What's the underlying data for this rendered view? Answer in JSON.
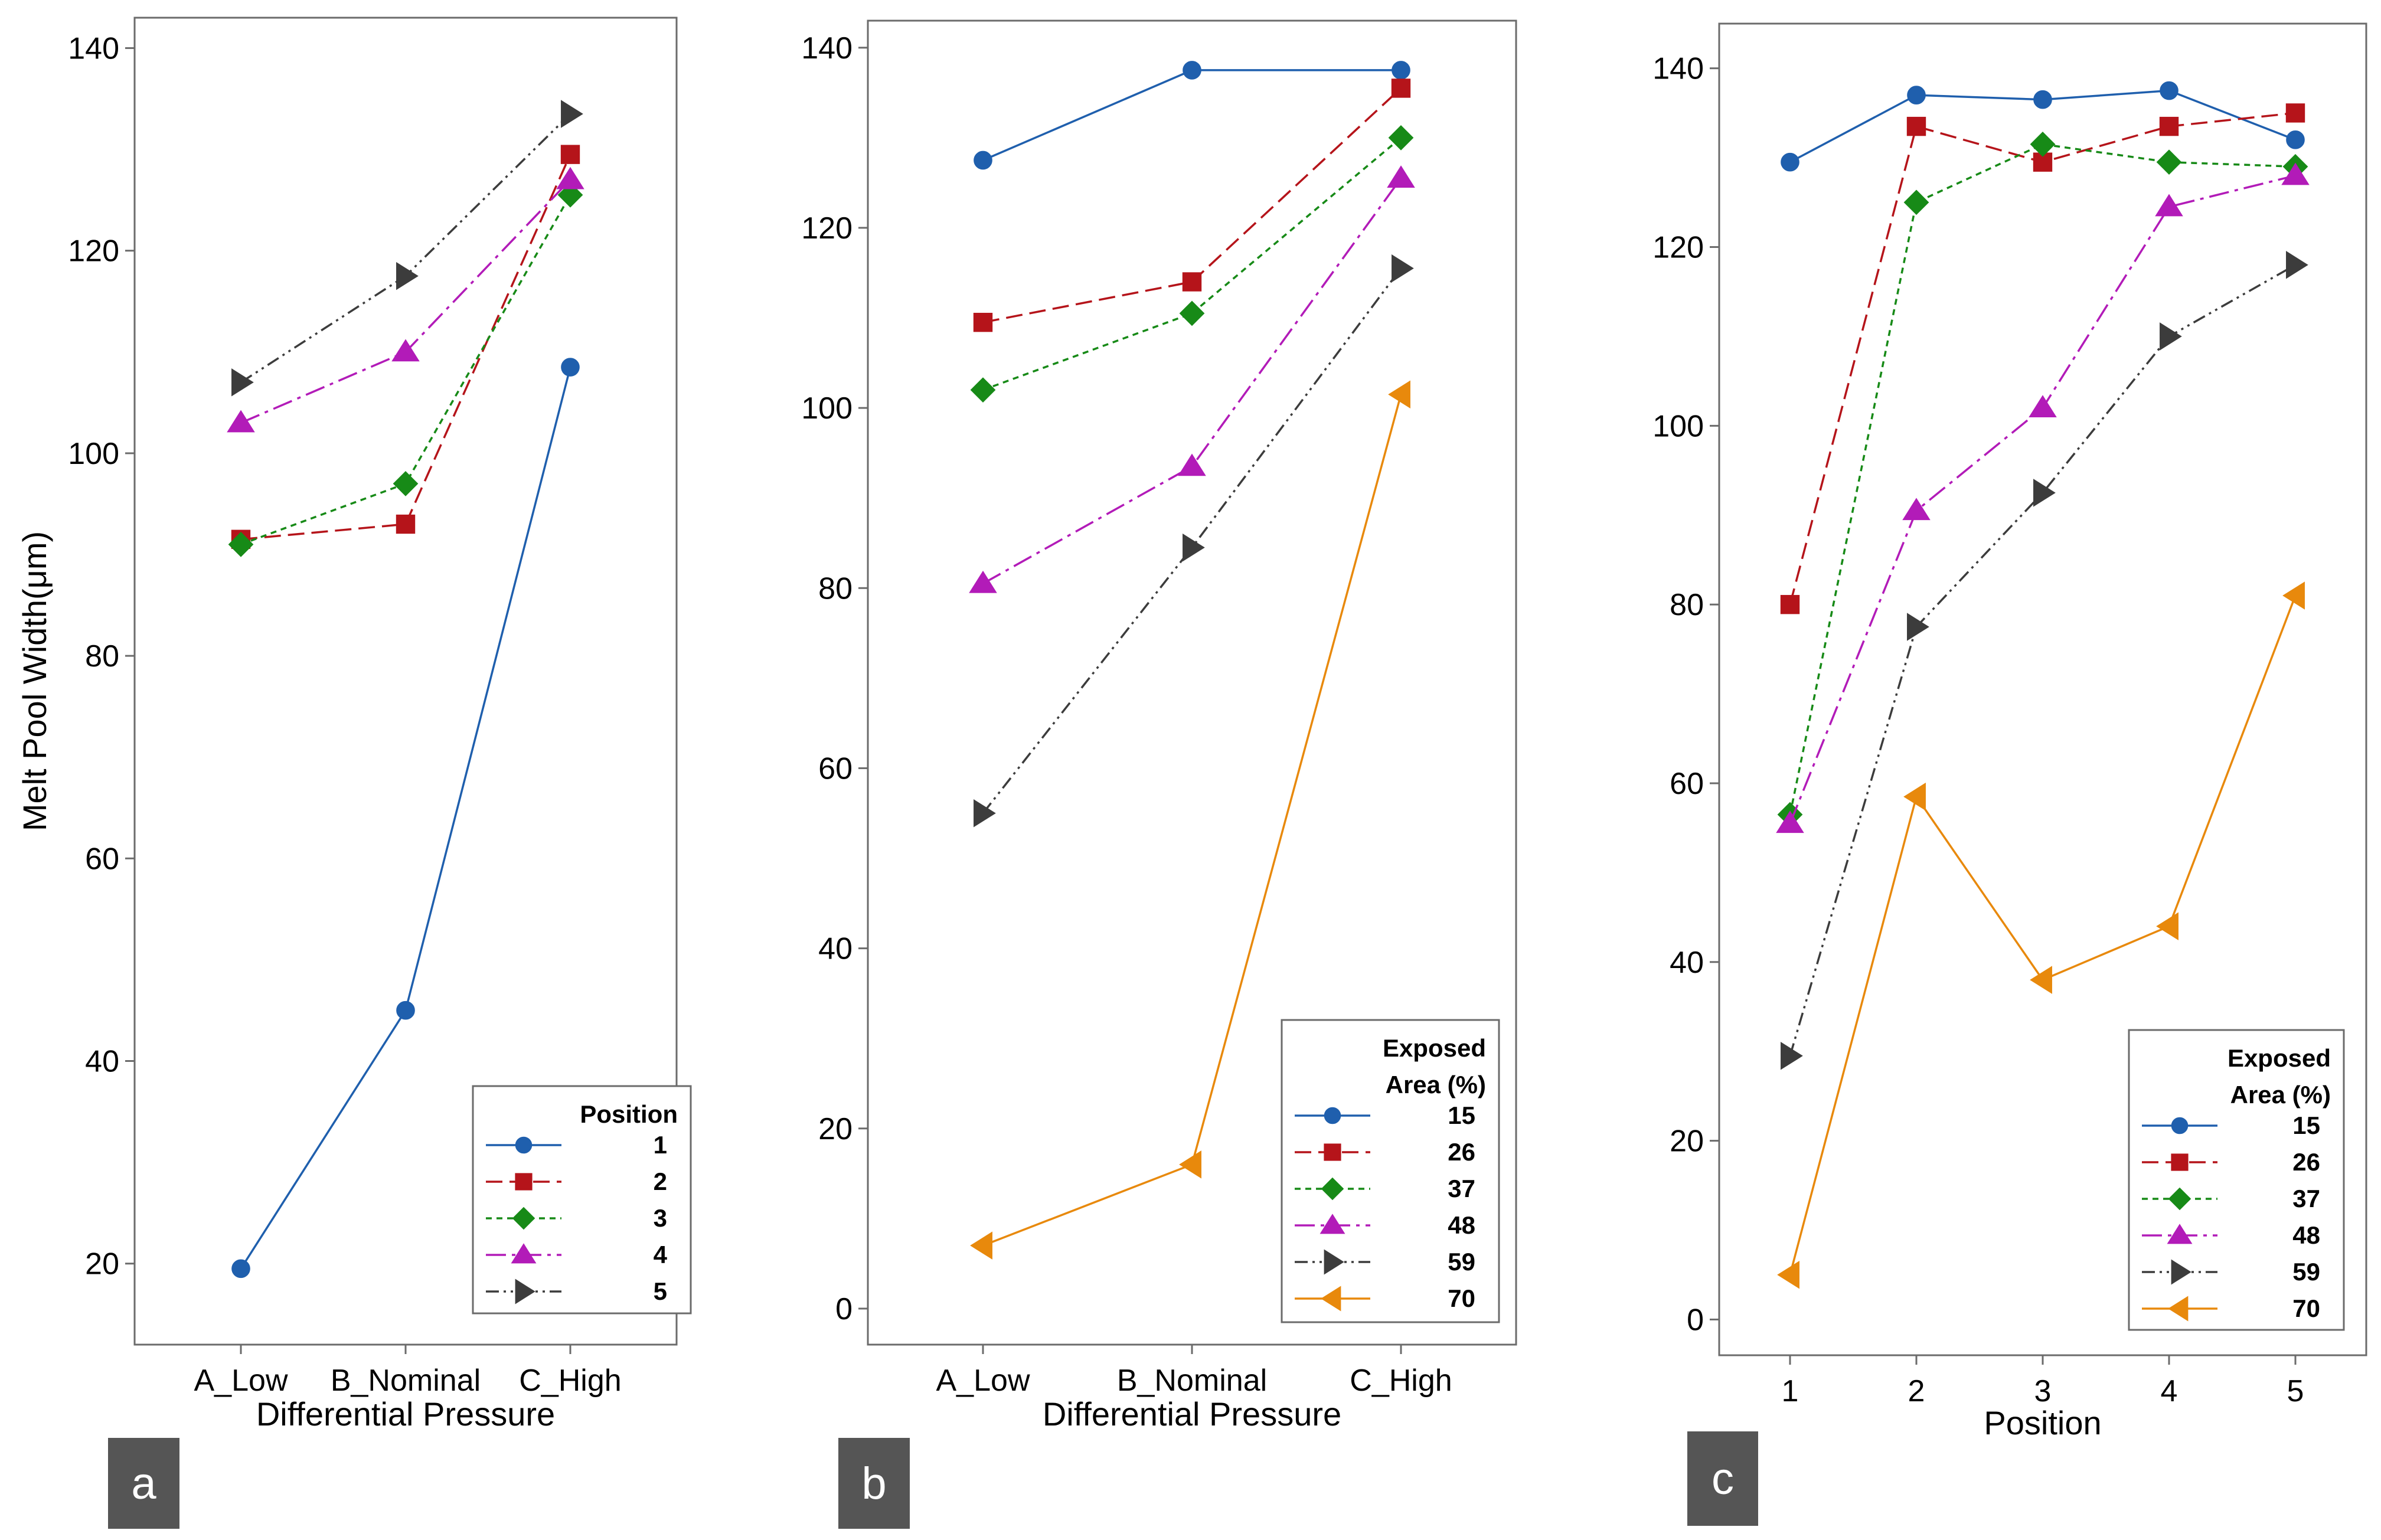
{
  "chart_data": [
    {
      "type": "line",
      "panel_label": "a",
      "xlabel": "Differential Pressure",
      "ylabel": "Melt Pool Width(μm)",
      "categories": [
        "A_Low",
        "B_Nominal",
        "C_High"
      ],
      "ylim": [
        12,
        143
      ],
      "yticks": [
        20,
        40,
        60,
        80,
        100,
        120,
        140
      ],
      "legend_title": [
        "Position"
      ],
      "legend_position": "bottom-right",
      "series": [
        {
          "name": "1",
          "values": [
            19.5,
            45,
            108.5
          ],
          "color": "#1f5fad",
          "dash": "",
          "marker": "circle"
        },
        {
          "name": "2",
          "values": [
            91.5,
            93,
            129.5
          ],
          "color": "#b5141a",
          "dash": "28,12",
          "marker": "square"
        },
        {
          "name": "3",
          "values": [
            91,
            97,
            125.5
          ],
          "color": "#178a17",
          "dash": "10,8",
          "marker": "diamond"
        },
        {
          "name": "4",
          "values": [
            103,
            110,
            127
          ],
          "color": "#b21bb8",
          "dash": "34,10,6,10",
          "marker": "triangle-up"
        },
        {
          "name": "5",
          "values": [
            107,
            117.5,
            133.5
          ],
          "color": "#3c3c3c",
          "dash": "22,8,4,8,4,8",
          "marker": "triangle-right"
        }
      ]
    },
    {
      "type": "line",
      "panel_label": "b",
      "xlabel": "Differential Pressure",
      "ylabel": "",
      "categories": [
        "A_Low",
        "B_Nominal",
        "C_High"
      ],
      "ylim": [
        -4,
        143
      ],
      "yticks": [
        0,
        20,
        40,
        60,
        80,
        100,
        120,
        140
      ],
      "legend_title": [
        "Exposed",
        "Area (%)"
      ],
      "legend_position": "bottom-right",
      "series": [
        {
          "name": "15",
          "values": [
            127.5,
            137.5,
            137.5
          ],
          "color": "#1f5fad",
          "dash": "",
          "marker": "circle"
        },
        {
          "name": "26",
          "values": [
            109.5,
            114,
            135.5
          ],
          "color": "#b5141a",
          "dash": "28,12",
          "marker": "square"
        },
        {
          "name": "37",
          "values": [
            102,
            110.5,
            130
          ],
          "color": "#178a17",
          "dash": "10,8",
          "marker": "diamond"
        },
        {
          "name": "48",
          "values": [
            80.5,
            93.5,
            125.5
          ],
          "color": "#b21bb8",
          "dash": "34,10,6,10",
          "marker": "triangle-up"
        },
        {
          "name": "59",
          "values": [
            55,
            84.5,
            115.5
          ],
          "color": "#3c3c3c",
          "dash": "22,8,4,8,4,8",
          "marker": "triangle-right"
        },
        {
          "name": "70",
          "values": [
            7,
            16,
            101.5
          ],
          "color": "#e8890c",
          "dash": "",
          "marker": "triangle-left"
        }
      ]
    },
    {
      "type": "line",
      "panel_label": "c",
      "xlabel": "Position",
      "ylabel": "",
      "categories": [
        "1",
        "2",
        "3",
        "4",
        "5"
      ],
      "ylim": [
        -4,
        145
      ],
      "yticks": [
        0,
        20,
        40,
        60,
        80,
        100,
        120,
        140
      ],
      "legend_title": [
        "Exposed",
        "Area (%)"
      ],
      "legend_position": "bottom-right",
      "series": [
        {
          "name": "15",
          "values": [
            129.5,
            137,
            136.5,
            137.5,
            132
          ],
          "color": "#1f5fad",
          "dash": "",
          "marker": "circle"
        },
        {
          "name": "26",
          "values": [
            80,
            133.5,
            129.5,
            133.5,
            135
          ],
          "color": "#b5141a",
          "dash": "28,12",
          "marker": "square"
        },
        {
          "name": "37",
          "values": [
            56.5,
            125,
            131.5,
            129.5,
            129
          ],
          "color": "#178a17",
          "dash": "10,8",
          "marker": "diamond"
        },
        {
          "name": "48",
          "values": [
            55.5,
            90.5,
            102,
            124.5,
            128
          ],
          "color": "#b21bb8",
          "dash": "34,10,6,10",
          "marker": "triangle-up"
        },
        {
          "name": "59",
          "values": [
            29.5,
            77.5,
            92.5,
            110,
            118
          ],
          "color": "#3c3c3c",
          "dash": "22,8,4,8,4,8",
          "marker": "triangle-right"
        },
        {
          "name": "70",
          "values": [
            5,
            58.5,
            38,
            44,
            81
          ],
          "color": "#e8890c",
          "dash": "",
          "marker": "triangle-left"
        }
      ]
    }
  ]
}
